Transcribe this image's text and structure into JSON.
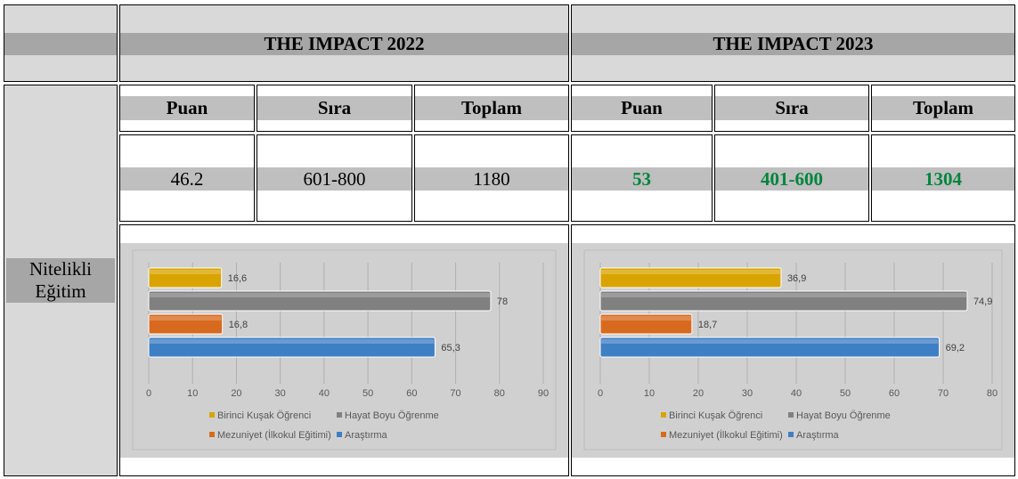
{
  "header": {
    "title_2022": "THE IMPACT 2022",
    "title_2023": "THE IMPACT 2023"
  },
  "row_label_line1": "Nitelikli",
  "row_label_line2": "Eğitim",
  "columns": [
    "Puan",
    "Sıra",
    "Toplam"
  ],
  "values_2022": {
    "puan": "46.2",
    "sira": "601-800",
    "toplam": "1180"
  },
  "values_2023": {
    "puan": "53",
    "sira": "401-600",
    "toplam": "1304"
  },
  "colors": {
    "accent_green": "#00853e",
    "gold": "#d9a400",
    "grey": "#808080",
    "orange": "#d86a1f",
    "blue": "#3f7fc4"
  },
  "chart_data": [
    {
      "type": "bar",
      "orientation": "horizontal",
      "categories": [
        "Birinci Kuşak Öğrenci",
        "Hayat Boyu Öğrenme",
        "Mezuniyet (İlkokul Eğitimi)",
        "Araştırma"
      ],
      "values": [
        16.6,
        78,
        16.8,
        65.3
      ],
      "data_labels": [
        "16,6",
        "78",
        "16,8",
        "65,3"
      ],
      "colors": [
        "#d9a400",
        "#808080",
        "#d86a1f",
        "#3f7fc4"
      ],
      "xlim": [
        0,
        90
      ],
      "xticks": [
        0,
        10,
        20,
        30,
        40,
        50,
        60,
        70,
        80,
        90
      ],
      "grid": true,
      "legend_position": "bottom"
    },
    {
      "type": "bar",
      "orientation": "horizontal",
      "categories": [
        "Birinci Kuşak Öğrenci",
        "Hayat Boyu Öğrenme",
        "Mezuniyet (İlkokul Eğitimi)",
        "Araştırma"
      ],
      "values": [
        36.9,
        74.9,
        18.7,
        69.2
      ],
      "data_labels": [
        "36,9",
        "74,9",
        "18,7",
        "69,2"
      ],
      "colors": [
        "#d9a400",
        "#808080",
        "#d86a1f",
        "#3f7fc4"
      ],
      "xlim": [
        0,
        80
      ],
      "xticks": [
        0,
        10,
        20,
        30,
        40,
        50,
        60,
        70,
        80
      ],
      "grid": true,
      "legend_position": "bottom"
    }
  ]
}
